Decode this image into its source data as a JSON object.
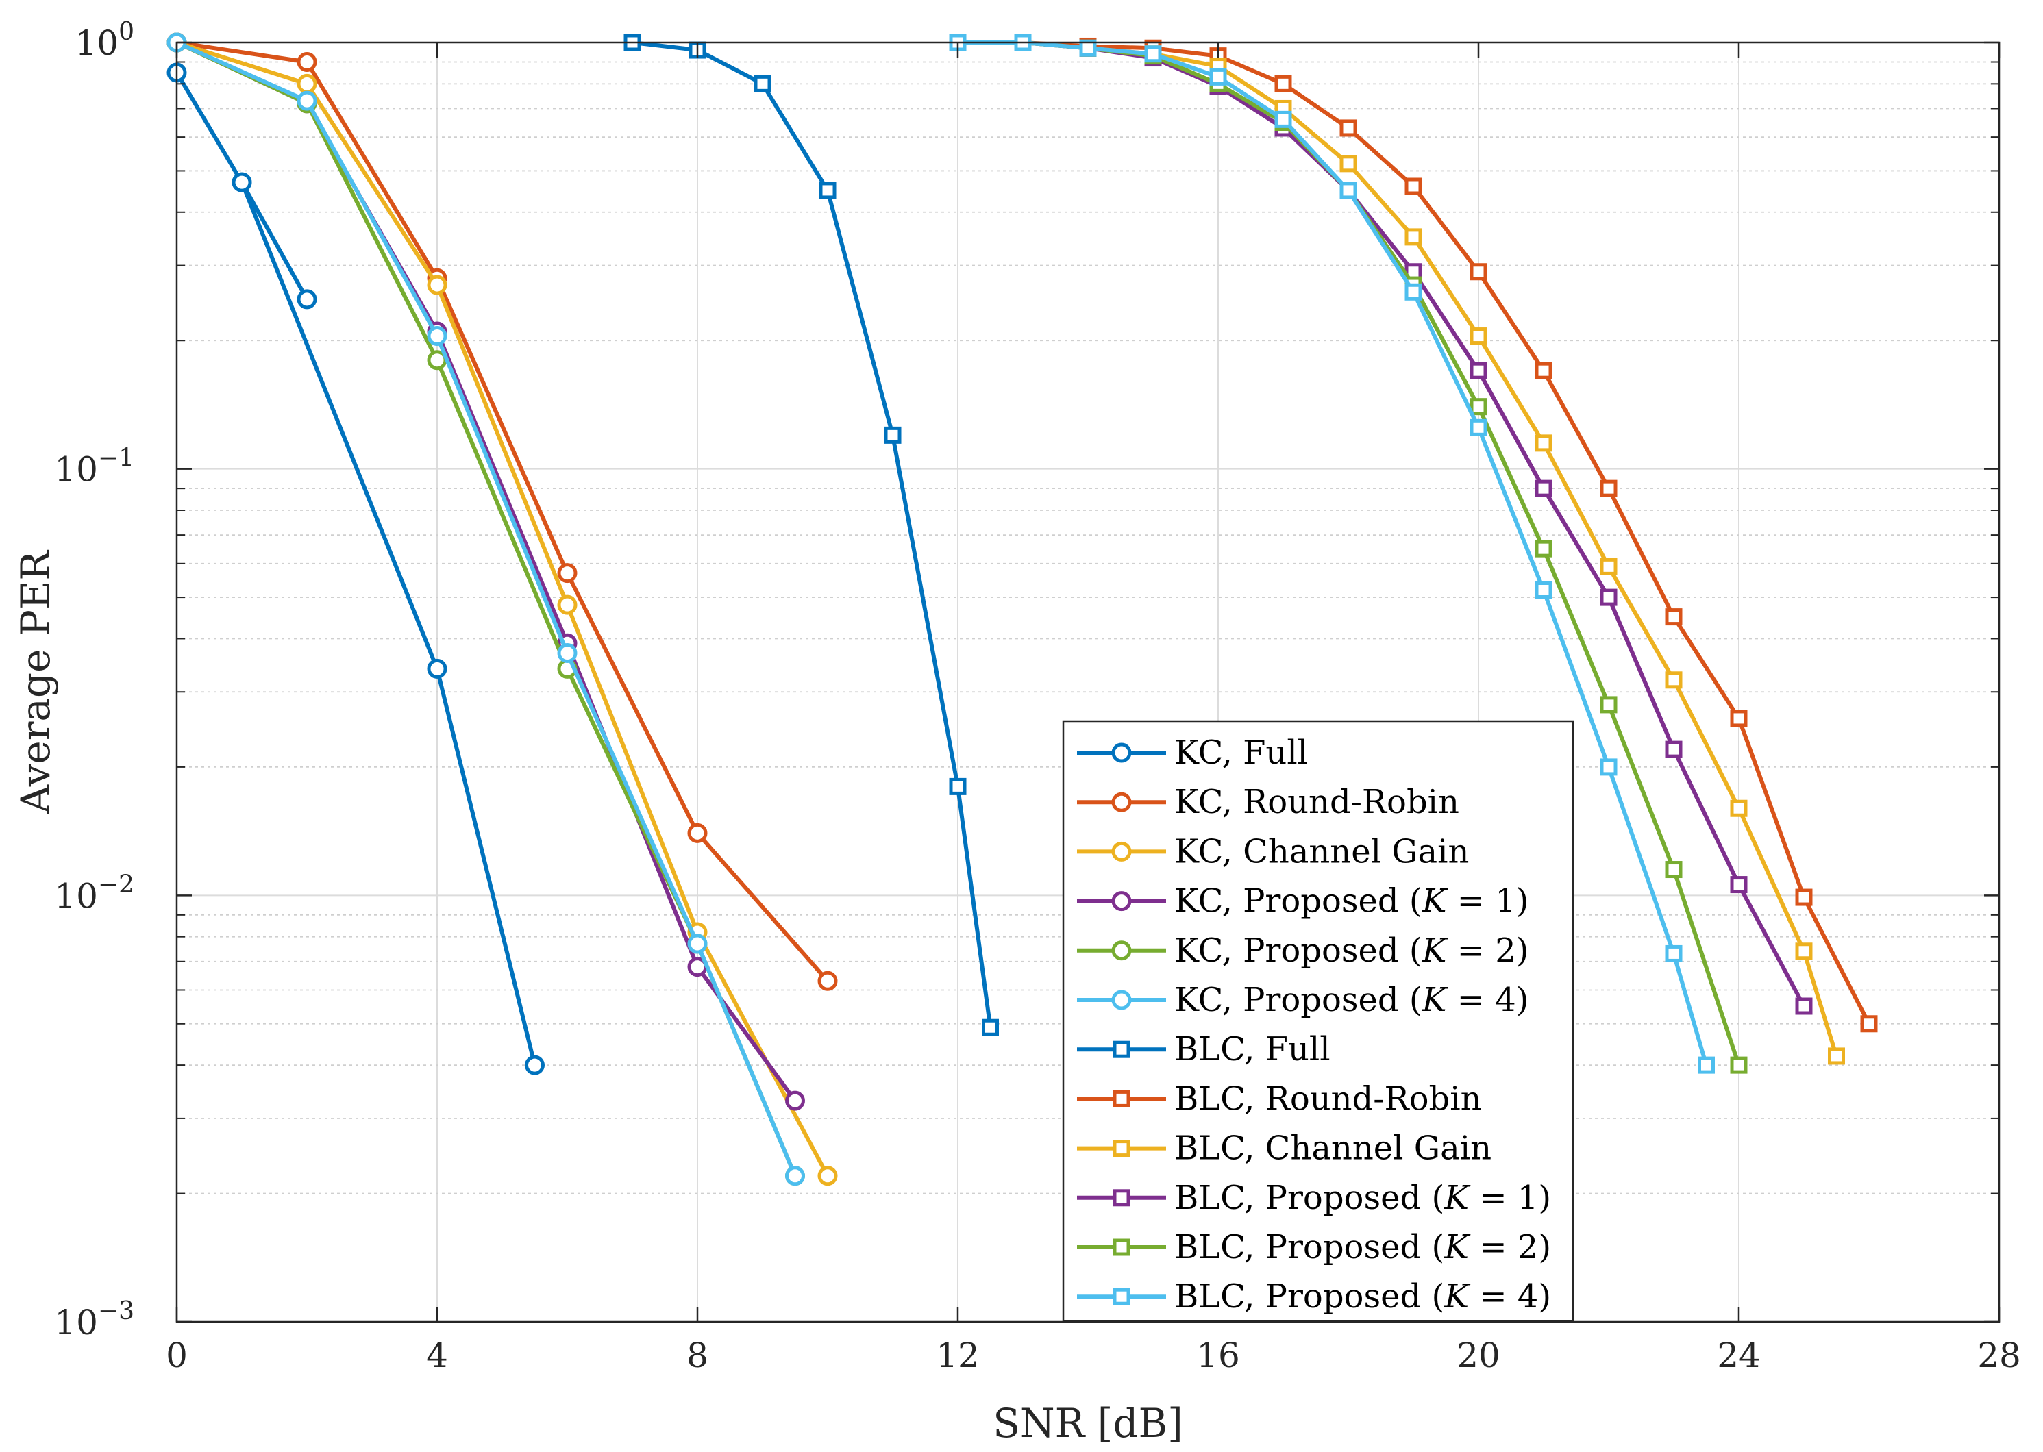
{
  "chart_data": {
    "type": "line",
    "title": "",
    "xlabel": "SNR [dB]",
    "ylabel": "Average PER",
    "xlim": [
      0,
      28
    ],
    "ylim": [
      0.001,
      1
    ],
    "yscale": "log",
    "grid": true,
    "legend_position": "lower-center",
    "x_ticks": [
      0,
      4,
      8,
      12,
      16,
      20,
      24,
      28
    ],
    "x_tick_labels": [
      "0",
      "4",
      "8",
      "12",
      "16",
      "20",
      "24",
      "28"
    ],
    "y_ticks": [
      {
        "value": 1,
        "base": "10",
        "exp": "0"
      },
      {
        "value": 0.1,
        "base": "10",
        "exp": "−1"
      },
      {
        "value": 0.01,
        "base": "10",
        "exp": "−2"
      },
      {
        "value": 0.001,
        "base": "10",
        "exp": "−3"
      }
    ],
    "series": [
      {
        "name": "KC, Full",
        "label_pre": "KC, Full",
        "k": "",
        "color": "#0072BD",
        "marker": "circle",
        "x": [
          0,
          1,
          2
        ],
        "y": [
          0.85,
          0.47,
          0.25
        ],
        "x2": [
          1,
          4,
          5.5
        ],
        "y2": [
          0.47,
          0.034,
          0.004
        ]
      },
      {
        "name": "KC, Round-Robin",
        "label_pre": "KC, Round-Robin",
        "k": "",
        "color": "#D95319",
        "marker": "circle",
        "x": [
          0,
          2,
          4,
          6,
          8,
          10
        ],
        "y": [
          1.0,
          0.9,
          0.28,
          0.057,
          0.014,
          0.0063
        ]
      },
      {
        "name": "KC, Channel Gain",
        "label_pre": "KC, Channel Gain",
        "k": "",
        "color": "#EDB120",
        "marker": "circle",
        "x": [
          0,
          2,
          4,
          6,
          8,
          10
        ],
        "y": [
          1.0,
          0.8,
          0.27,
          0.048,
          0.0082,
          0.0022
        ]
      },
      {
        "name": "KC, Proposed (K = 1)",
        "label_pre": "KC, Proposed (",
        "k": "1",
        "color": "#7E2F8E",
        "marker": "circle",
        "x": [
          0,
          2,
          4,
          6,
          8,
          9.5
        ],
        "y": [
          1.0,
          0.72,
          0.21,
          0.039,
          0.0068,
          0.0033
        ]
      },
      {
        "name": "KC, Proposed (K = 2)",
        "label_pre": "KC, Proposed (",
        "k": "2",
        "color": "#77AC30",
        "marker": "circle",
        "x": [
          0,
          2,
          4,
          6,
          8,
          9.5
        ],
        "y": [
          1.0,
          0.72,
          0.18,
          0.034,
          0.0077,
          0.0022
        ]
      },
      {
        "name": "KC, Proposed (K = 4)",
        "label_pre": "KC, Proposed (",
        "k": "4",
        "color": "#4DBEEE",
        "marker": "circle",
        "x": [
          0,
          2,
          4,
          6,
          8,
          9.5
        ],
        "y": [
          1.0,
          0.73,
          0.205,
          0.037,
          0.0077,
          0.0022
        ]
      },
      {
        "name": "BLC, Full",
        "label_pre": "BLC, Full",
        "k": "",
        "color": "#0072BD",
        "marker": "square",
        "x": [
          7,
          8,
          9,
          10,
          11,
          12,
          12.5
        ],
        "y": [
          1.0,
          0.96,
          0.8,
          0.45,
          0.12,
          0.018,
          0.0049
        ]
      },
      {
        "name": "BLC, Round-Robin",
        "label_pre": "BLC, Round-Robin",
        "k": "",
        "color": "#D95319",
        "marker": "square",
        "x": [
          12,
          13,
          14,
          15,
          16,
          17,
          18,
          19,
          20,
          21,
          22,
          23,
          24,
          25,
          26
        ],
        "y": [
          1.0,
          1.0,
          0.98,
          0.97,
          0.93,
          0.8,
          0.63,
          0.46,
          0.29,
          0.17,
          0.09,
          0.045,
          0.026,
          0.0099,
          0.005
        ]
      },
      {
        "name": "BLC, Channel Gain",
        "label_pre": "BLC, Channel Gain",
        "k": "",
        "color": "#EDB120",
        "marker": "square",
        "x": [
          12,
          13,
          14,
          15,
          16,
          17,
          18,
          19,
          20,
          21,
          22,
          23,
          24,
          25,
          25.5
        ],
        "y": [
          1.0,
          1.0,
          0.97,
          0.94,
          0.88,
          0.7,
          0.52,
          0.35,
          0.205,
          0.115,
          0.059,
          0.032,
          0.016,
          0.0074,
          0.0042
        ]
      },
      {
        "name": "BLC, Proposed (K = 1)",
        "label_pre": "BLC, Proposed (",
        "k": "1",
        "color": "#7E2F8E",
        "marker": "square",
        "x": [
          12,
          13,
          14,
          15,
          16,
          17,
          18,
          19,
          20,
          21,
          22,
          23,
          24,
          25
        ],
        "y": [
          1.0,
          1.0,
          0.97,
          0.92,
          0.79,
          0.63,
          0.45,
          0.29,
          0.17,
          0.09,
          0.05,
          0.022,
          0.0106,
          0.0055
        ]
      },
      {
        "name": "BLC, Proposed (K = 2)",
        "label_pre": "BLC, Proposed (",
        "k": "2",
        "color": "#77AC30",
        "marker": "square",
        "x": [
          12,
          13,
          14,
          15,
          16,
          17,
          18,
          19,
          20,
          21,
          22,
          23,
          24
        ],
        "y": [
          1.0,
          1.0,
          0.97,
          0.93,
          0.8,
          0.65,
          0.45,
          0.27,
          0.14,
          0.065,
          0.028,
          0.0115,
          0.004
        ]
      },
      {
        "name": "BLC, Proposed (K = 4)",
        "label_pre": "BLC, Proposed (",
        "k": "4",
        "color": "#4DBEEE",
        "marker": "square",
        "x": [
          12,
          13,
          14,
          15,
          16,
          17,
          18,
          19,
          20,
          21,
          22,
          23,
          23.5
        ],
        "y": [
          1.0,
          1.0,
          0.97,
          0.94,
          0.83,
          0.66,
          0.45,
          0.26,
          0.125,
          0.052,
          0.02,
          0.0073,
          0.004
        ]
      }
    ]
  }
}
